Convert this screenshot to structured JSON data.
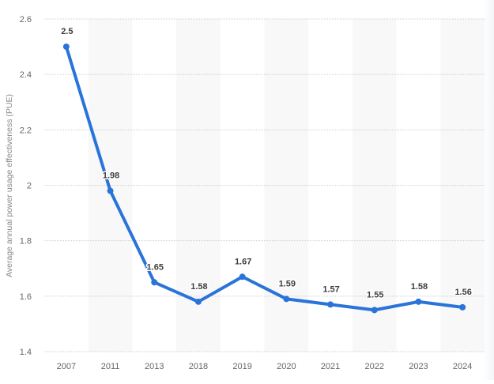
{
  "chart_data": {
    "type": "line",
    "title": "",
    "xlabel": "",
    "ylabel": "Average annual power usage effectiveness (PUE)",
    "categories": [
      "2007",
      "2011",
      "2013",
      "2018",
      "2019",
      "2020",
      "2021",
      "2022",
      "2023",
      "2024"
    ],
    "series": [
      {
        "name": "Average annual PUE",
        "values": [
          2.5,
          1.98,
          1.65,
          1.58,
          1.67,
          1.59,
          1.57,
          1.55,
          1.58,
          1.56
        ],
        "data_labels": [
          "2.5",
          "1.98",
          "1.65",
          "1.58",
          "1.67",
          "1.59",
          "1.57",
          "1.55",
          "1.58",
          "1.56"
        ]
      }
    ],
    "ylim": [
      1.4,
      2.6
    ],
    "y_ticks": [
      1.4,
      1.6,
      1.8,
      2,
      2.2,
      2.4,
      2.6
    ],
    "y_tick_labels": [
      "1.4",
      "1.6",
      "1.8",
      "2",
      "2.2",
      "2.4",
      "2.6"
    ],
    "grid": true,
    "alternating_column_bands": true,
    "legend": "none"
  },
  "colors": {
    "line": "#2a74d9",
    "band": "#f8f8f8",
    "grid": "#cfcfcf",
    "label": "#3d3d3d",
    "tick": "#666666"
  }
}
